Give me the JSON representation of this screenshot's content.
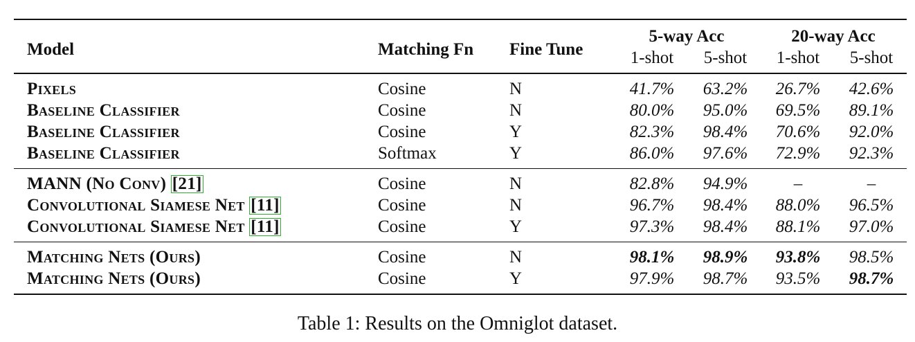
{
  "table": {
    "headers": {
      "model": "Model",
      "matching_fn": "Matching Fn",
      "fine_tune": "Fine Tune",
      "group_5way": "5-way Acc",
      "group_20way": "20-way Acc",
      "shot1": "1-shot",
      "shot5": "5-shot"
    },
    "rows": [
      {
        "model": "Pixels",
        "ref": "",
        "match": "Cosine",
        "fine": "N",
        "v": [
          "41.7%",
          "63.2%",
          "26.7%",
          "42.6%"
        ]
      },
      {
        "model": "Baseline Classifier",
        "ref": "",
        "match": "Cosine",
        "fine": "N",
        "v": [
          "80.0%",
          "95.0%",
          "69.5%",
          "89.1%"
        ]
      },
      {
        "model": "Baseline Classifier",
        "ref": "",
        "match": "Cosine",
        "fine": "Y",
        "v": [
          "82.3%",
          "98.4%",
          "70.6%",
          "92.0%"
        ]
      },
      {
        "model": "Baseline Classifier",
        "ref": "",
        "match": "Softmax",
        "fine": "Y",
        "v": [
          "86.0%",
          "97.6%",
          "72.9%",
          "92.3%"
        ]
      },
      {
        "model": "MANN (No Conv)",
        "ref": "21",
        "match": "Cosine",
        "fine": "N",
        "v": [
          "82.8%",
          "94.9%",
          "–",
          "–"
        ]
      },
      {
        "model": "Convolutional Siamese Net",
        "ref": "11",
        "match": "Cosine",
        "fine": "N",
        "v": [
          "96.7%",
          "98.4%",
          "88.0%",
          "96.5%"
        ]
      },
      {
        "model": "Convolutional Siamese Net",
        "ref": "11",
        "match": "Cosine",
        "fine": "Y",
        "v": [
          "97.3%",
          "98.4%",
          "88.1%",
          "97.0%"
        ]
      },
      {
        "model": "Matching Nets (Ours)",
        "ref": "",
        "match": "Cosine",
        "fine": "N",
        "v": [
          "98.1%",
          "98.9%",
          "93.8%",
          "98.5%"
        ]
      },
      {
        "model": "Matching Nets (Ours)",
        "ref": "",
        "match": "Cosine",
        "fine": "Y",
        "v": [
          "97.9%",
          "98.7%",
          "93.5%",
          "98.7%"
        ]
      }
    ]
  },
  "caption": "Table 1:  Results on the Omniglot dataset."
}
